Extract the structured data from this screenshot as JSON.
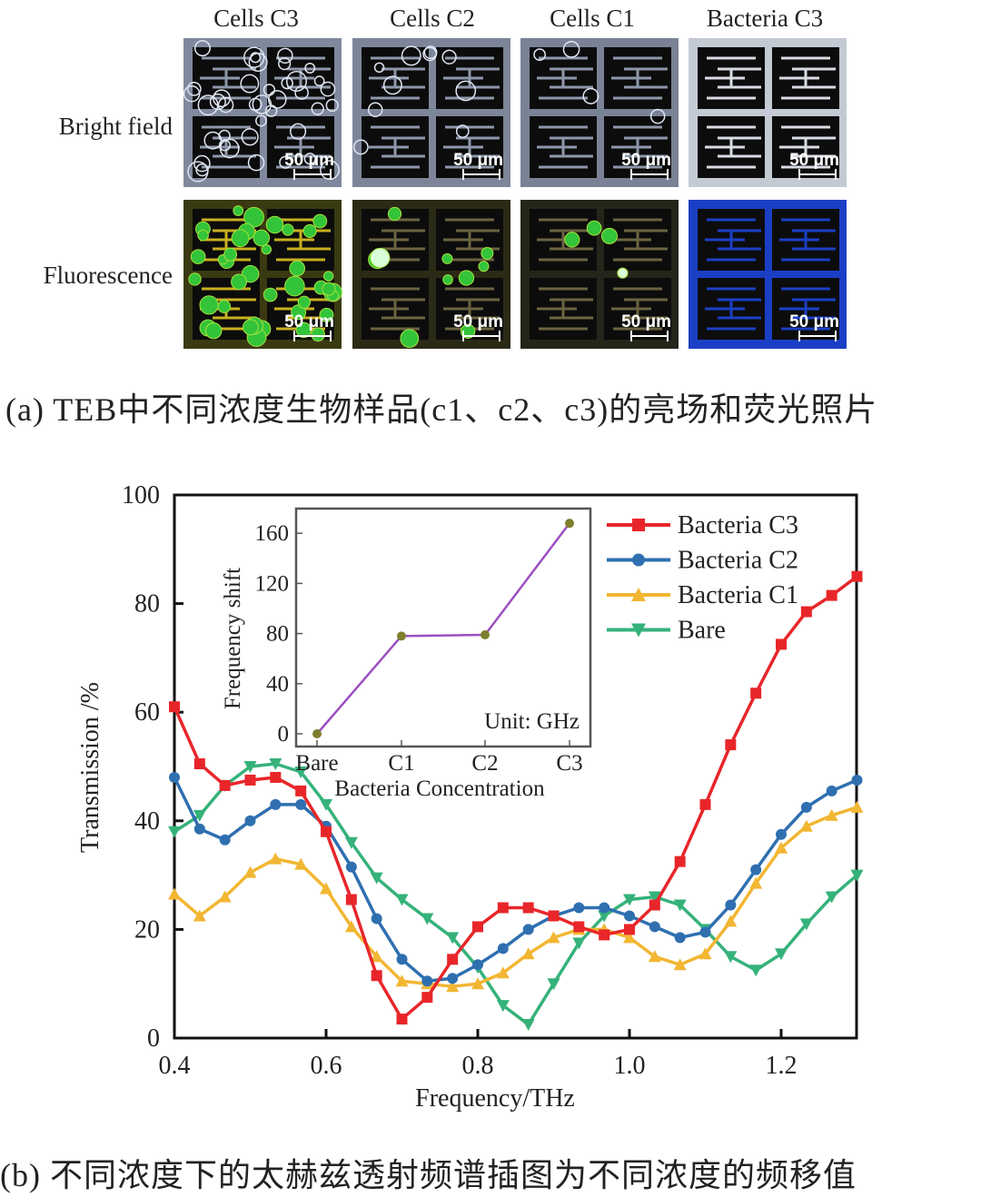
{
  "panel_a": {
    "columns": [
      "Cells C3",
      "Cells C2",
      "Cells C1",
      "Bacteria C3"
    ],
    "rows": [
      "Bright field",
      "Fluorescence"
    ],
    "scale_bar": "50 μm",
    "caption": "(a) TEB中不同浓度生物样品(c1、c2、c3)的亮场和荧光照片"
  },
  "panel_b": {
    "caption": "(b) 不同浓度下的太赫兹透射频谱插图为不同浓度的频移值"
  },
  "chart_data": [
    {
      "type": "line",
      "title": "",
      "xlabel": "Frequency/THz",
      "ylabel": "Transmission /%",
      "xlim": [
        0.4,
        1.3
      ],
      "ylim": [
        0,
        100
      ],
      "xticks": [
        "0.4",
        "0.6",
        "0.8",
        "1.0",
        "1.2"
      ],
      "xtick_values": [
        0.4,
        0.6,
        0.8,
        1.0,
        1.2
      ],
      "yticks": [
        "0",
        "20",
        "40",
        "60",
        "80",
        "100"
      ],
      "ytick_values": [
        0,
        20,
        40,
        60,
        80,
        100
      ],
      "legend_position": "top-right",
      "x_start": 0.4,
      "x_step": 0.0333,
      "series": [
        {
          "name": "Bacteria C3",
          "color": "#e8262a",
          "marker": "square",
          "values": [
            61,
            50.5,
            46.5,
            47.5,
            48,
            45.5,
            38,
            25.5,
            11.5,
            3.5,
            7.5,
            14.5,
            20.5,
            24,
            24,
            22.5,
            20.5,
            19,
            20,
            24.5,
            32.5,
            43,
            54,
            63.5,
            72.5,
            78.5,
            81.5,
            85
          ]
        },
        {
          "name": "Bacteria C2",
          "color": "#2f6fb0",
          "marker": "circle",
          "values": [
            48,
            38.5,
            36.5,
            40,
            43,
            43,
            39,
            31.5,
            22,
            14.5,
            10.5,
            11,
            13.5,
            16.5,
            20,
            22.5,
            24,
            24,
            22.5,
            20.5,
            18.5,
            19.5,
            24.5,
            31,
            37.5,
            42.5,
            45.5,
            47.5
          ]
        },
        {
          "name": "Bacteria C1",
          "color": "#f2b632",
          "marker": "triangle-up",
          "values": [
            26.5,
            22.5,
            26,
            30.5,
            33,
            32,
            27.5,
            20.5,
            15,
            10.5,
            10,
            9.5,
            10,
            12,
            15.5,
            18.5,
            20,
            20,
            18.5,
            15,
            13.5,
            15.5,
            21.5,
            28.5,
            35,
            39,
            41,
            42.5
          ]
        },
        {
          "name": "Bare",
          "color": "#35b27a",
          "marker": "triangle-down",
          "values": [
            38,
            41,
            46.5,
            50,
            50.5,
            49,
            43,
            36,
            29.5,
            25.5,
            22,
            18.5,
            13,
            6,
            2.5,
            10,
            17.5,
            22.5,
            25.5,
            26,
            24.5,
            20,
            15,
            12.5,
            15.5,
            21,
            26,
            30
          ]
        }
      ]
    },
    {
      "type": "line",
      "title": "inset",
      "xlabel": "Bacteria Concentration",
      "ylabel": "Frequency shift",
      "annotation": "Unit: GHz",
      "categories": [
        "Bare",
        "C1",
        "C2",
        "C3"
      ],
      "values": [
        0,
        78,
        79,
        168
      ],
      "yticks": [
        "0",
        "40",
        "80",
        "120",
        "160"
      ],
      "ytick_values": [
        0,
        40,
        80,
        120,
        160
      ],
      "ylim": [
        0,
        180
      ],
      "line_color": "#9b4fc0",
      "marker_color": "#7d7f2c"
    }
  ]
}
